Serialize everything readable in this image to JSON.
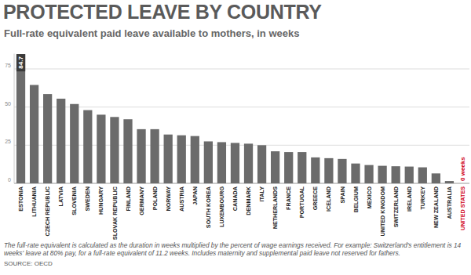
{
  "chart_data": {
    "type": "bar",
    "title": "PROTECTED LEAVE BY COUNTRY",
    "subtitle": "Full-rate equivalent paid leave available to mothers, in weeks",
    "note": "The full-rate equivalent is calculated as the duration in weeks multiplied by the percent of wage earnings received. For example: Switzerland's entitlement is 14 weeks' leave at 80% pay, for a full-rate equivalent of 11.2 weeks. Includes maternity and supplemental paid leave not reserved for fathers.",
    "source": "SOURCE: OECD",
    "categories": [
      "ESTONIA",
      "LITHUANIA",
      "CZECH REPUBLIC",
      "LATVIA",
      "SLOVENIA",
      "SWEDEN",
      "HUNGARY",
      "SLOVAK REPUBLIC",
      "FINLAND",
      "GERMANY",
      "POLAND",
      "NORWAY",
      "AUSTRIA",
      "JAPAN",
      "SOUTH KOREA",
      "LUXEMBOURG",
      "CANADA",
      "DENMARK",
      "ITALY",
      "NETHERLANDS",
      "FRANCE",
      "PORTUGAL",
      "GREECE",
      "ICELAND",
      "SPAIN",
      "BELGIUM",
      "MEXICO",
      "UNITED KINGDOM",
      "SWITZERLAND",
      "IRELAND",
      "TURKEY",
      "NEW ZEALAND",
      "AUSTRALIA",
      "UNITED STATES"
    ],
    "values": [
      84.7,
      64.5,
      58.5,
      55.5,
      52,
      48,
      45,
      43.5,
      42,
      35.5,
      35.5,
      32,
      31.5,
      31,
      27.5,
      27,
      26.5,
      26,
      25,
      21,
      20.5,
      20.5,
      17,
      16.5,
      16,
      13,
      12,
      11.5,
      11.2,
      11,
      10.5,
      6.5,
      1.5,
      0
    ],
    "value_labels": [
      "84.7",
      null,
      null,
      null,
      null,
      null,
      null,
      null,
      null,
      null,
      null,
      null,
      null,
      null,
      null,
      null,
      null,
      null,
      null,
      null,
      null,
      null,
      null,
      null,
      null,
      null,
      null,
      null,
      null,
      null,
      null,
      null,
      null,
      "0 weeks"
    ],
    "color": "#6b6b6b",
    "colors": [
      "#6b6b6b",
      "#6b6b6b",
      "#6b6b6b",
      "#6b6b6b",
      "#6b6b6b",
      "#6b6b6b",
      "#6b6b6b",
      "#6b6b6b",
      "#6b6b6b",
      "#6b6b6b",
      "#6b6b6b",
      "#6b6b6b",
      "#6b6b6b",
      "#6b6b6b",
      "#6b6b6b",
      "#6b6b6b",
      "#6b6b6b",
      "#6b6b6b",
      "#6b6b6b",
      "#6b6b6b",
      "#6b6b6b",
      "#6b6b6b",
      "#6b6b6b",
      "#6b6b6b",
      "#6b6b6b",
      "#6b6b6b",
      "#6b6b6b",
      "#6b6b6b",
      "#6b6b6b",
      "#6b6b6b",
      "#6b6b6b",
      "#6b6b6b",
      "#6b6b6b",
      "#d0021b"
    ],
    "ylim": [
      0,
      85
    ],
    "yticks": [
      0,
      25,
      50,
      75
    ],
    "grid": true,
    "data_labels": true
  }
}
